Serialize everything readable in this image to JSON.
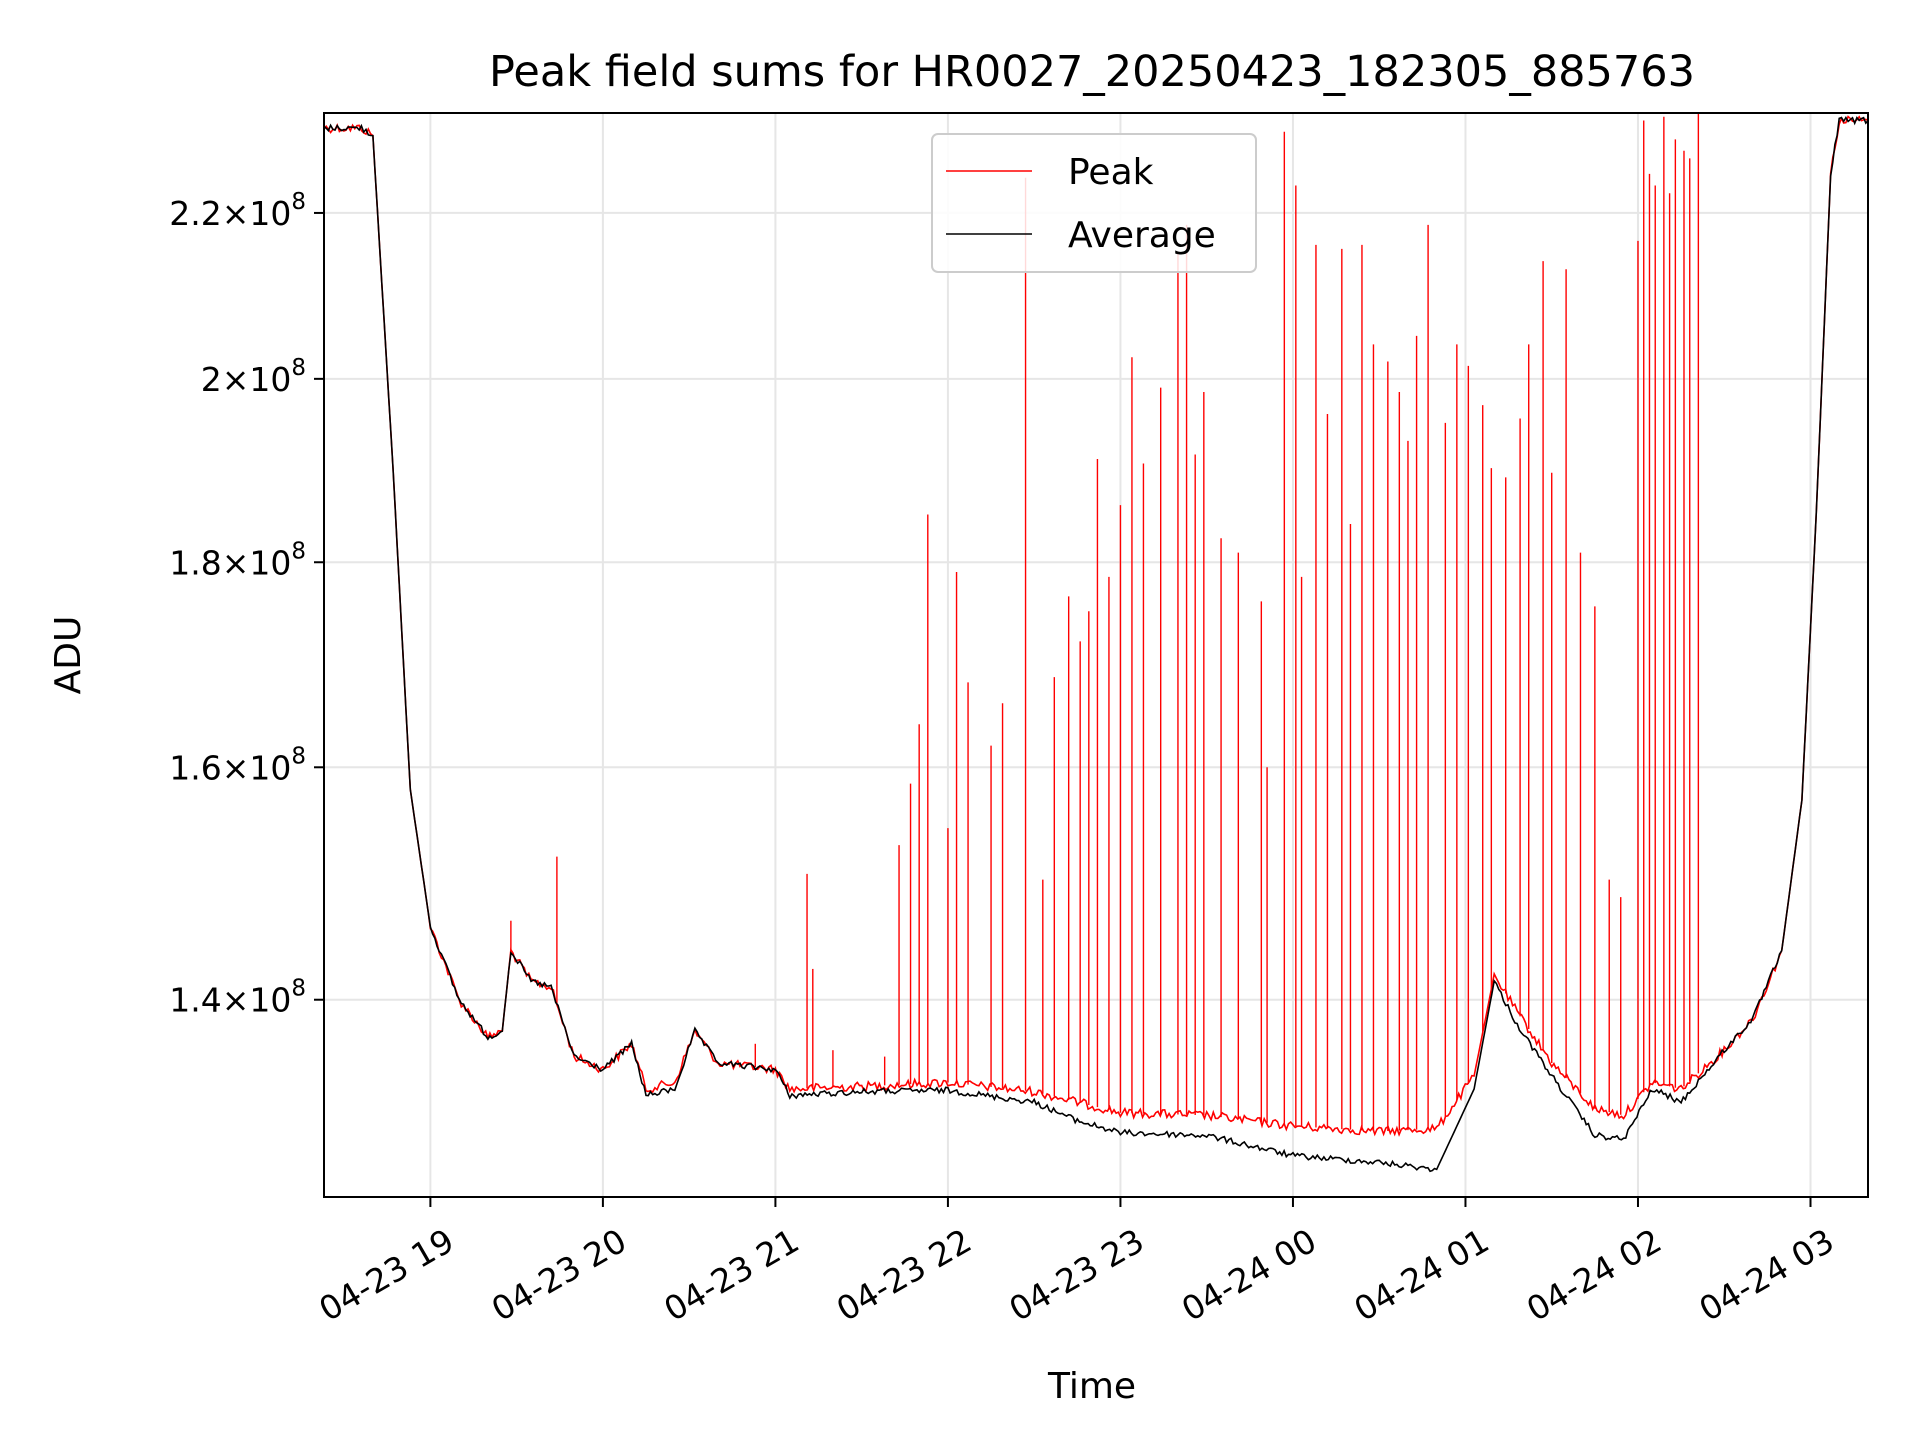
{
  "chart_data": {
    "type": "line",
    "title": "Peak field sums for HR0027_20250423_182305_885763",
    "xlabel": "Time",
    "ylabel": "ADU",
    "y_scale": "log",
    "grid": true,
    "legend_placement": "top-center",
    "x_range": [
      "2025-04-23 18:23",
      "2025-04-24 03:20"
    ],
    "ylim": [
      125000000,
      233000000
    ],
    "x_ticks": [
      "04-23 19",
      "04-23 20",
      "04-23 21",
      "04-23 22",
      "04-23 23",
      "04-24 00",
      "04-24 01",
      "04-24 02",
      "04-24 03"
    ],
    "y_ticks": [
      {
        "value": 140000000,
        "base": "1.4",
        "exp": "8"
      },
      {
        "value": 160000000,
        "base": "1.6",
        "exp": "8"
      },
      {
        "value": 180000000,
        "base": "1.8",
        "exp": "8"
      },
      {
        "value": 200000000,
        "base": "2",
        "exp": "8"
      },
      {
        "value": 220000000,
        "base": "2.2",
        "exp": "8"
      }
    ],
    "series": [
      {
        "name": "Peak",
        "color": "#ff0000",
        "baseline": [
          [
            "2025-04-23 18:23",
            231000000
          ],
          [
            "2025-04-23 18:36",
            231000000
          ],
          [
            "2025-04-23 18:40",
            230000000
          ],
          [
            "2025-04-23 18:47",
            190000000
          ],
          [
            "2025-04-23 18:53",
            158000000
          ],
          [
            "2025-04-23 19:00",
            146000000
          ],
          [
            "2025-04-23 19:10",
            140000000
          ],
          [
            "2025-04-23 19:20",
            137000000
          ],
          [
            "2025-04-23 19:25",
            137500000
          ],
          [
            "2025-04-23 19:28",
            144000000
          ],
          [
            "2025-04-23 19:35",
            141500000
          ],
          [
            "2025-04-23 19:42",
            141000000
          ],
          [
            "2025-04-23 19:50",
            135500000
          ],
          [
            "2025-04-23 20:00",
            134500000
          ],
          [
            "2025-04-23 20:10",
            136500000
          ],
          [
            "2025-04-23 20:15",
            133000000
          ],
          [
            "2025-04-23 20:25",
            133500000
          ],
          [
            "2025-04-23 20:32",
            137500000
          ],
          [
            "2025-04-23 20:40",
            135000000
          ],
          [
            "2025-04-23 21:00",
            134500000
          ],
          [
            "2025-04-23 21:05",
            133000000
          ],
          [
            "2025-04-23 21:30",
            133200000
          ],
          [
            "2025-04-23 22:00",
            133500000
          ],
          [
            "2025-04-23 22:30",
            132800000
          ],
          [
            "2025-04-23 22:45",
            132000000
          ],
          [
            "2025-04-23 23:00",
            131200000
          ],
          [
            "2025-04-23 23:30",
            131000000
          ],
          [
            "2025-04-24 00:00",
            130200000
          ],
          [
            "2025-04-24 00:30",
            129800000
          ],
          [
            "2025-04-24 00:50",
            130000000
          ],
          [
            "2025-04-24 01:03",
            134000000
          ],
          [
            "2025-04-24 01:10",
            142000000
          ],
          [
            "2025-04-24 01:18",
            139000000
          ],
          [
            "2025-04-24 01:30",
            135000000
          ],
          [
            "2025-04-24 01:45",
            131500000
          ],
          [
            "2025-04-24 01:55",
            131000000
          ],
          [
            "2025-04-24 02:05",
            133500000
          ],
          [
            "2025-04-24 02:15",
            133000000
          ],
          [
            "2025-04-24 02:30",
            136000000
          ],
          [
            "2025-04-24 02:40",
            138500000
          ],
          [
            "2025-04-24 02:50",
            144000000
          ],
          [
            "2025-04-24 02:57",
            157000000
          ],
          [
            "2025-04-24 03:02",
            185000000
          ],
          [
            "2025-04-24 03:07",
            225000000
          ],
          [
            "2025-04-24 03:10",
            232000000
          ],
          [
            "2025-04-24 03:20",
            232000000
          ]
        ],
        "spikes": [
          [
            "2025-04-23 19:28",
            146500000
          ],
          [
            "2025-04-23 19:44",
            152000000
          ],
          [
            "2025-04-23 20:53",
            136500000
          ],
          [
            "2025-04-23 21:11",
            150500000
          ],
          [
            "2025-04-23 21:13",
            142500000
          ],
          [
            "2025-04-23 21:20",
            136000000
          ],
          [
            "2025-04-23 21:38",
            135500000
          ],
          [
            "2025-04-23 21:43",
            153000000
          ],
          [
            "2025-04-23 21:47",
            158500000
          ],
          [
            "2025-04-23 21:50",
            164000000
          ],
          [
            "2025-04-23 21:53",
            185000000
          ],
          [
            "2025-04-23 22:00",
            154500000
          ],
          [
            "2025-04-23 22:03",
            179000000
          ],
          [
            "2025-04-23 22:07",
            168000000
          ],
          [
            "2025-04-23 22:15",
            162000000
          ],
          [
            "2025-04-23 22:19",
            166000000
          ],
          [
            "2025-04-23 22:27",
            224500000
          ],
          [
            "2025-04-23 22:33",
            150000000
          ],
          [
            "2025-04-23 22:37",
            168500000
          ],
          [
            "2025-04-23 22:42",
            176500000
          ],
          [
            "2025-04-23 22:46",
            172000000
          ],
          [
            "2025-04-23 22:49",
            175000000
          ],
          [
            "2025-04-23 22:52",
            191000000
          ],
          [
            "2025-04-23 22:56",
            178500000
          ],
          [
            "2025-04-23 23:00",
            186000000
          ],
          [
            "2025-04-23 23:04",
            202500000
          ],
          [
            "2025-04-23 23:08",
            190500000
          ],
          [
            "2025-04-23 23:14",
            199000000
          ],
          [
            "2025-04-23 23:20",
            215000000
          ],
          [
            "2025-04-23 23:23",
            218500000
          ],
          [
            "2025-04-23 23:26",
            191500000
          ],
          [
            "2025-04-23 23:29",
            198500000
          ],
          [
            "2025-04-23 23:35",
            182500000
          ],
          [
            "2025-04-23 23:41",
            181000000
          ],
          [
            "2025-04-23 23:49",
            176000000
          ],
          [
            "2025-04-23 23:51",
            160000000
          ],
          [
            "2025-04-23 23:57",
            230500000
          ],
          [
            "2025-04-24 00:01",
            223500000
          ],
          [
            "2025-04-24 00:03",
            178500000
          ],
          [
            "2025-04-24 00:08",
            216000000
          ],
          [
            "2025-04-24 00:12",
            196000000
          ],
          [
            "2025-04-24 00:17",
            215500000
          ],
          [
            "2025-04-24 00:20",
            184000000
          ],
          [
            "2025-04-24 00:24",
            216000000
          ],
          [
            "2025-04-24 00:28",
            204000000
          ],
          [
            "2025-04-24 00:33",
            202000000
          ],
          [
            "2025-04-24 00:37",
            198500000
          ],
          [
            "2025-04-24 00:40",
            193000000
          ],
          [
            "2025-04-24 00:43",
            205000000
          ],
          [
            "2025-04-24 00:47",
            218500000
          ],
          [
            "2025-04-24 00:53",
            195000000
          ],
          [
            "2025-04-24 00:57",
            204000000
          ],
          [
            "2025-04-24 01:01",
            201500000
          ],
          [
            "2025-04-24 01:06",
            197000000
          ],
          [
            "2025-04-24 01:09",
            190000000
          ],
          [
            "2025-04-24 01:14",
            189000000
          ],
          [
            "2025-04-24 01:19",
            195500000
          ],
          [
            "2025-04-24 01:22",
            204000000
          ],
          [
            "2025-04-24 01:27",
            214000000
          ],
          [
            "2025-04-24 01:30",
            189500000
          ],
          [
            "2025-04-24 01:35",
            213000000
          ],
          [
            "2025-04-24 01:40",
            181000000
          ],
          [
            "2025-04-24 01:45",
            175500000
          ],
          [
            "2025-04-24 01:50",
            150000000
          ],
          [
            "2025-04-24 01:54",
            148500000
          ],
          [
            "2025-04-24 02:00",
            216500000
          ],
          [
            "2025-04-24 02:02",
            232000000
          ],
          [
            "2025-04-24 02:04",
            225000000
          ],
          [
            "2025-04-24 02:06",
            223500000
          ],
          [
            "2025-04-24 02:09",
            232500000
          ],
          [
            "2025-04-24 02:11",
            222500000
          ],
          [
            "2025-04-24 02:13",
            229500000
          ],
          [
            "2025-04-24 02:16",
            228000000
          ],
          [
            "2025-04-24 02:18",
            227000000
          ],
          [
            "2025-04-24 02:21",
            233000000
          ]
        ]
      },
      {
        "name": "Average",
        "color": "#000000",
        "baseline": [
          [
            "2025-04-23 18:23",
            231000000
          ],
          [
            "2025-04-23 18:36",
            231000000
          ],
          [
            "2025-04-23 18:40",
            230000000
          ],
          [
            "2025-04-23 18:47",
            190000000
          ],
          [
            "2025-04-23 18:53",
            158000000
          ],
          [
            "2025-04-23 19:00",
            146000000
          ],
          [
            "2025-04-23 19:10",
            140000000
          ],
          [
            "2025-04-23 19:20",
            137000000
          ],
          [
            "2025-04-23 19:25",
            137500000
          ],
          [
            "2025-04-23 19:28",
            144000000
          ],
          [
            "2025-04-23 19:35",
            141500000
          ],
          [
            "2025-04-23 19:42",
            141000000
          ],
          [
            "2025-04-23 19:50",
            135500000
          ],
          [
            "2025-04-23 20:00",
            134500000
          ],
          [
            "2025-04-23 20:10",
            136500000
          ],
          [
            "2025-04-23 20:15",
            132500000
          ],
          [
            "2025-04-23 20:25",
            133000000
          ],
          [
            "2025-04-23 20:32",
            137500000
          ],
          [
            "2025-04-23 20:40",
            135000000
          ],
          [
            "2025-04-23 21:00",
            134500000
          ],
          [
            "2025-04-23 21:05",
            132500000
          ],
          [
            "2025-04-23 21:30",
            132800000
          ],
          [
            "2025-04-23 22:00",
            132900000
          ],
          [
            "2025-04-23 22:30",
            132000000
          ],
          [
            "2025-04-23 22:45",
            130600000
          ],
          [
            "2025-04-23 23:00",
            129700000
          ],
          [
            "2025-04-23 23:30",
            129500000
          ],
          [
            "2025-04-24 00:00",
            128000000
          ],
          [
            "2025-04-24 00:30",
            127500000
          ],
          [
            "2025-04-24 00:50",
            127000000
          ],
          [
            "2025-04-24 01:03",
            133000000
          ],
          [
            "2025-04-24 01:10",
            141500000
          ],
          [
            "2025-04-24 01:18",
            138000000
          ],
          [
            "2025-04-24 01:30",
            134000000
          ],
          [
            "2025-04-24 01:45",
            129500000
          ],
          [
            "2025-04-24 01:55",
            129200000
          ],
          [
            "2025-04-24 02:05",
            133000000
          ],
          [
            "2025-04-24 02:15",
            132000000
          ],
          [
            "2025-04-24 02:30",
            136000000
          ],
          [
            "2025-04-24 02:40",
            138500000
          ],
          [
            "2025-04-24 02:50",
            144000000
          ],
          [
            "2025-04-24 02:57",
            157000000
          ],
          [
            "2025-04-24 03:02",
            185000000
          ],
          [
            "2025-04-24 03:07",
            225000000
          ],
          [
            "2025-04-24 03:10",
            232000000
          ],
          [
            "2025-04-24 03:20",
            232000000
          ]
        ]
      }
    ]
  }
}
